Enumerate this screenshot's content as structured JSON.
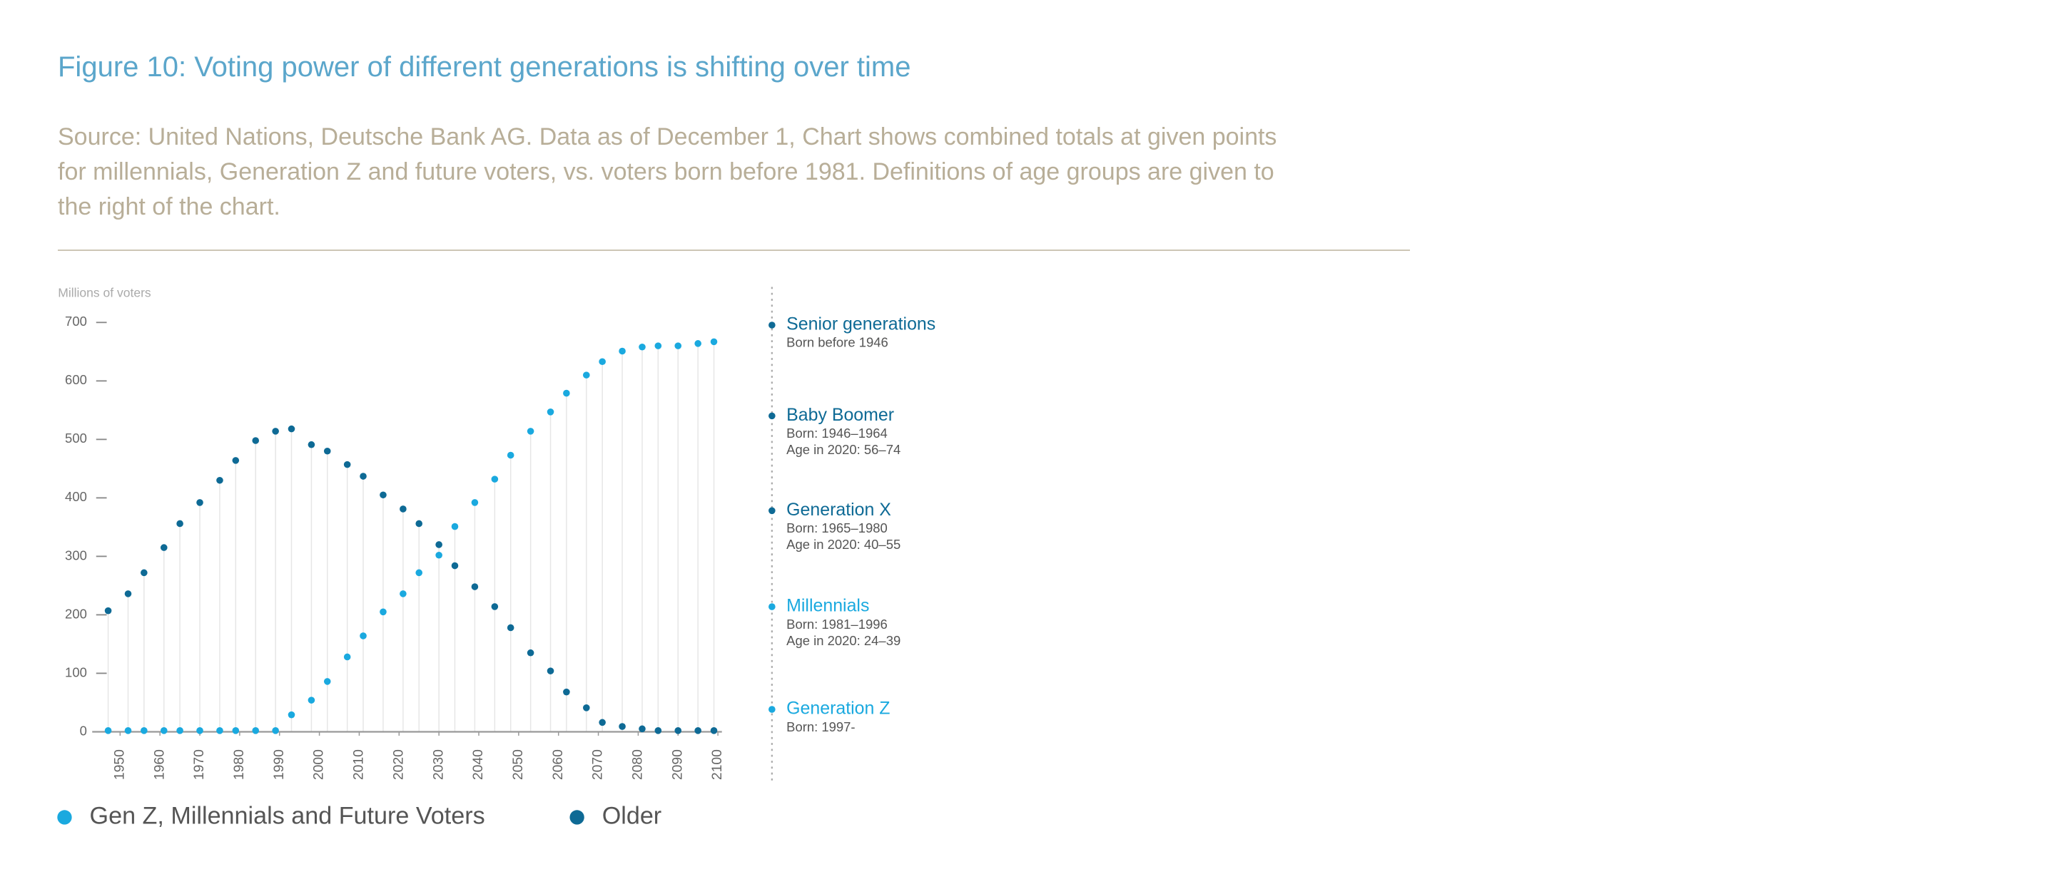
{
  "chart_data": {
    "type": "scatter",
    "title": "Figure 10: Voting power of different generations is shifting over time",
    "subtitle": "Source: United Nations, Deutsche Bank AG. Data as of December 1, Chart shows combined totals at given points for millennials, Generation Z and future voters, vs. voters born before 1981. Definitions of age groups are given to the right of the chart.",
    "y_label": "Millions of voters",
    "x": [
      1947,
      1952,
      1956,
      1961,
      1965,
      1970,
      1975,
      1979,
      1984,
      1989,
      1993,
      1998,
      2002,
      2007,
      2011,
      2016,
      2021,
      2025,
      2030,
      2034,
      2039,
      2044,
      2048,
      2053,
      2058,
      2062,
      2067,
      2071,
      2076,
      2081,
      2085,
      2090,
      2095,
      2099
    ],
    "series": [
      {
        "name": "Gen Z, Millennials and Future Voters",
        "color": "#1aa9df",
        "values": [
          2,
          2,
          2,
          2,
          2,
          2,
          2,
          2,
          2,
          2,
          29,
          54,
          86,
          128,
          164,
          205,
          236,
          272,
          302,
          351,
          392,
          432,
          473,
          514,
          547,
          579,
          610,
          633,
          651,
          658,
          660,
          660,
          664,
          667
        ]
      },
      {
        "name": "Older",
        "color": "#0e6a95",
        "values": [
          207,
          236,
          272,
          315,
          356,
          392,
          430,
          464,
          498,
          514,
          518,
          491,
          480,
          457,
          437,
          405,
          381,
          356,
          320,
          284,
          248,
          214,
          178,
          135,
          104,
          68,
          41,
          16,
          9,
          5,
          2,
          2,
          2,
          2
        ]
      }
    ],
    "xlim": [
      1943,
      2101
    ],
    "xticks": [
      1950,
      1960,
      1970,
      1980,
      1990,
      2000,
      2010,
      2020,
      2030,
      2040,
      2050,
      2060,
      2070,
      2080,
      2090,
      2100
    ],
    "ylim": [
      0,
      700
    ],
    "yticks": [
      0,
      100,
      200,
      300,
      400,
      500,
      600,
      700
    ],
    "generations": [
      {
        "name": "Senior generations",
        "color": "#0e6a95",
        "lines": [
          "Born before 1946"
        ]
      },
      {
        "name": "Baby Boomer",
        "color": "#0e6a95",
        "lines": [
          "Born: 1946–1964",
          "Age in 2020: 56–74"
        ]
      },
      {
        "name": "Generation X",
        "color": "#0e6a95",
        "lines": [
          "Born: 1965–1980",
          "Age in 2020: 40–55"
        ]
      },
      {
        "name": "Millennials",
        "color": "#1aa9df",
        "lines": [
          "Born: 1981–1996",
          "Age in 2020: 24–39"
        ]
      },
      {
        "name": "Generation Z",
        "color": "#1aa9df",
        "lines": [
          "Born: 1997-"
        ]
      }
    ]
  }
}
